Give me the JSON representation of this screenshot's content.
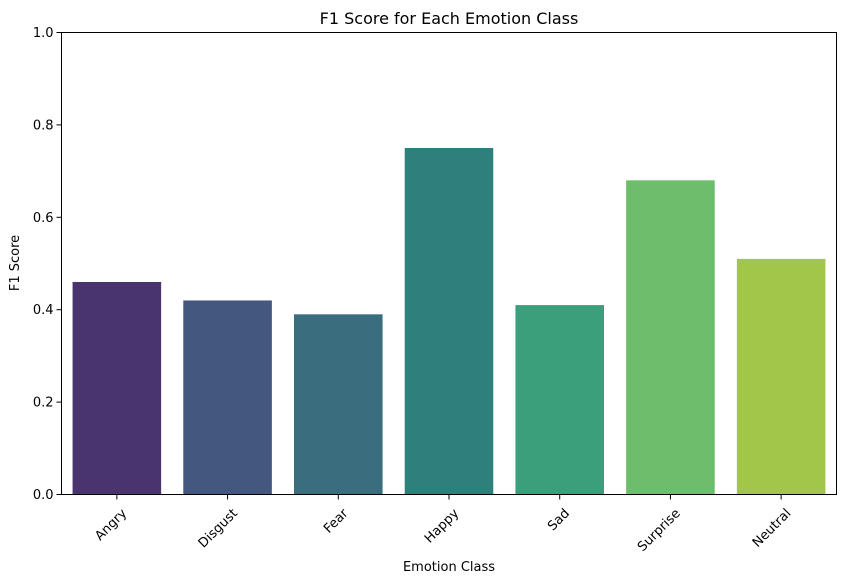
{
  "chart_data": {
    "type": "bar",
    "title": "F1 Score for Each Emotion Class",
    "xlabel": "Emotion Class",
    "ylabel": "F1 Score",
    "ylim": [
      0,
      1.0
    ],
    "yticks": [
      "0.0",
      "0.2",
      "0.4",
      "0.6",
      "0.8",
      "1.0"
    ],
    "ytick_values": [
      0.0,
      0.2,
      0.4,
      0.6,
      0.8,
      1.0
    ],
    "categories": [
      "Angry",
      "Disgust",
      "Fear",
      "Happy",
      "Sad",
      "Surprise",
      "Neutral"
    ],
    "values": [
      0.46,
      0.42,
      0.39,
      0.75,
      0.41,
      0.68,
      0.51
    ],
    "colors": [
      "#4a3470",
      "#44577f",
      "#3a6d7e",
      "#2d807b",
      "#3b9f7b",
      "#6dbd6c",
      "#a1c64a"
    ],
    "grid": false,
    "legend": "none",
    "xtick_rotation": 45
  }
}
